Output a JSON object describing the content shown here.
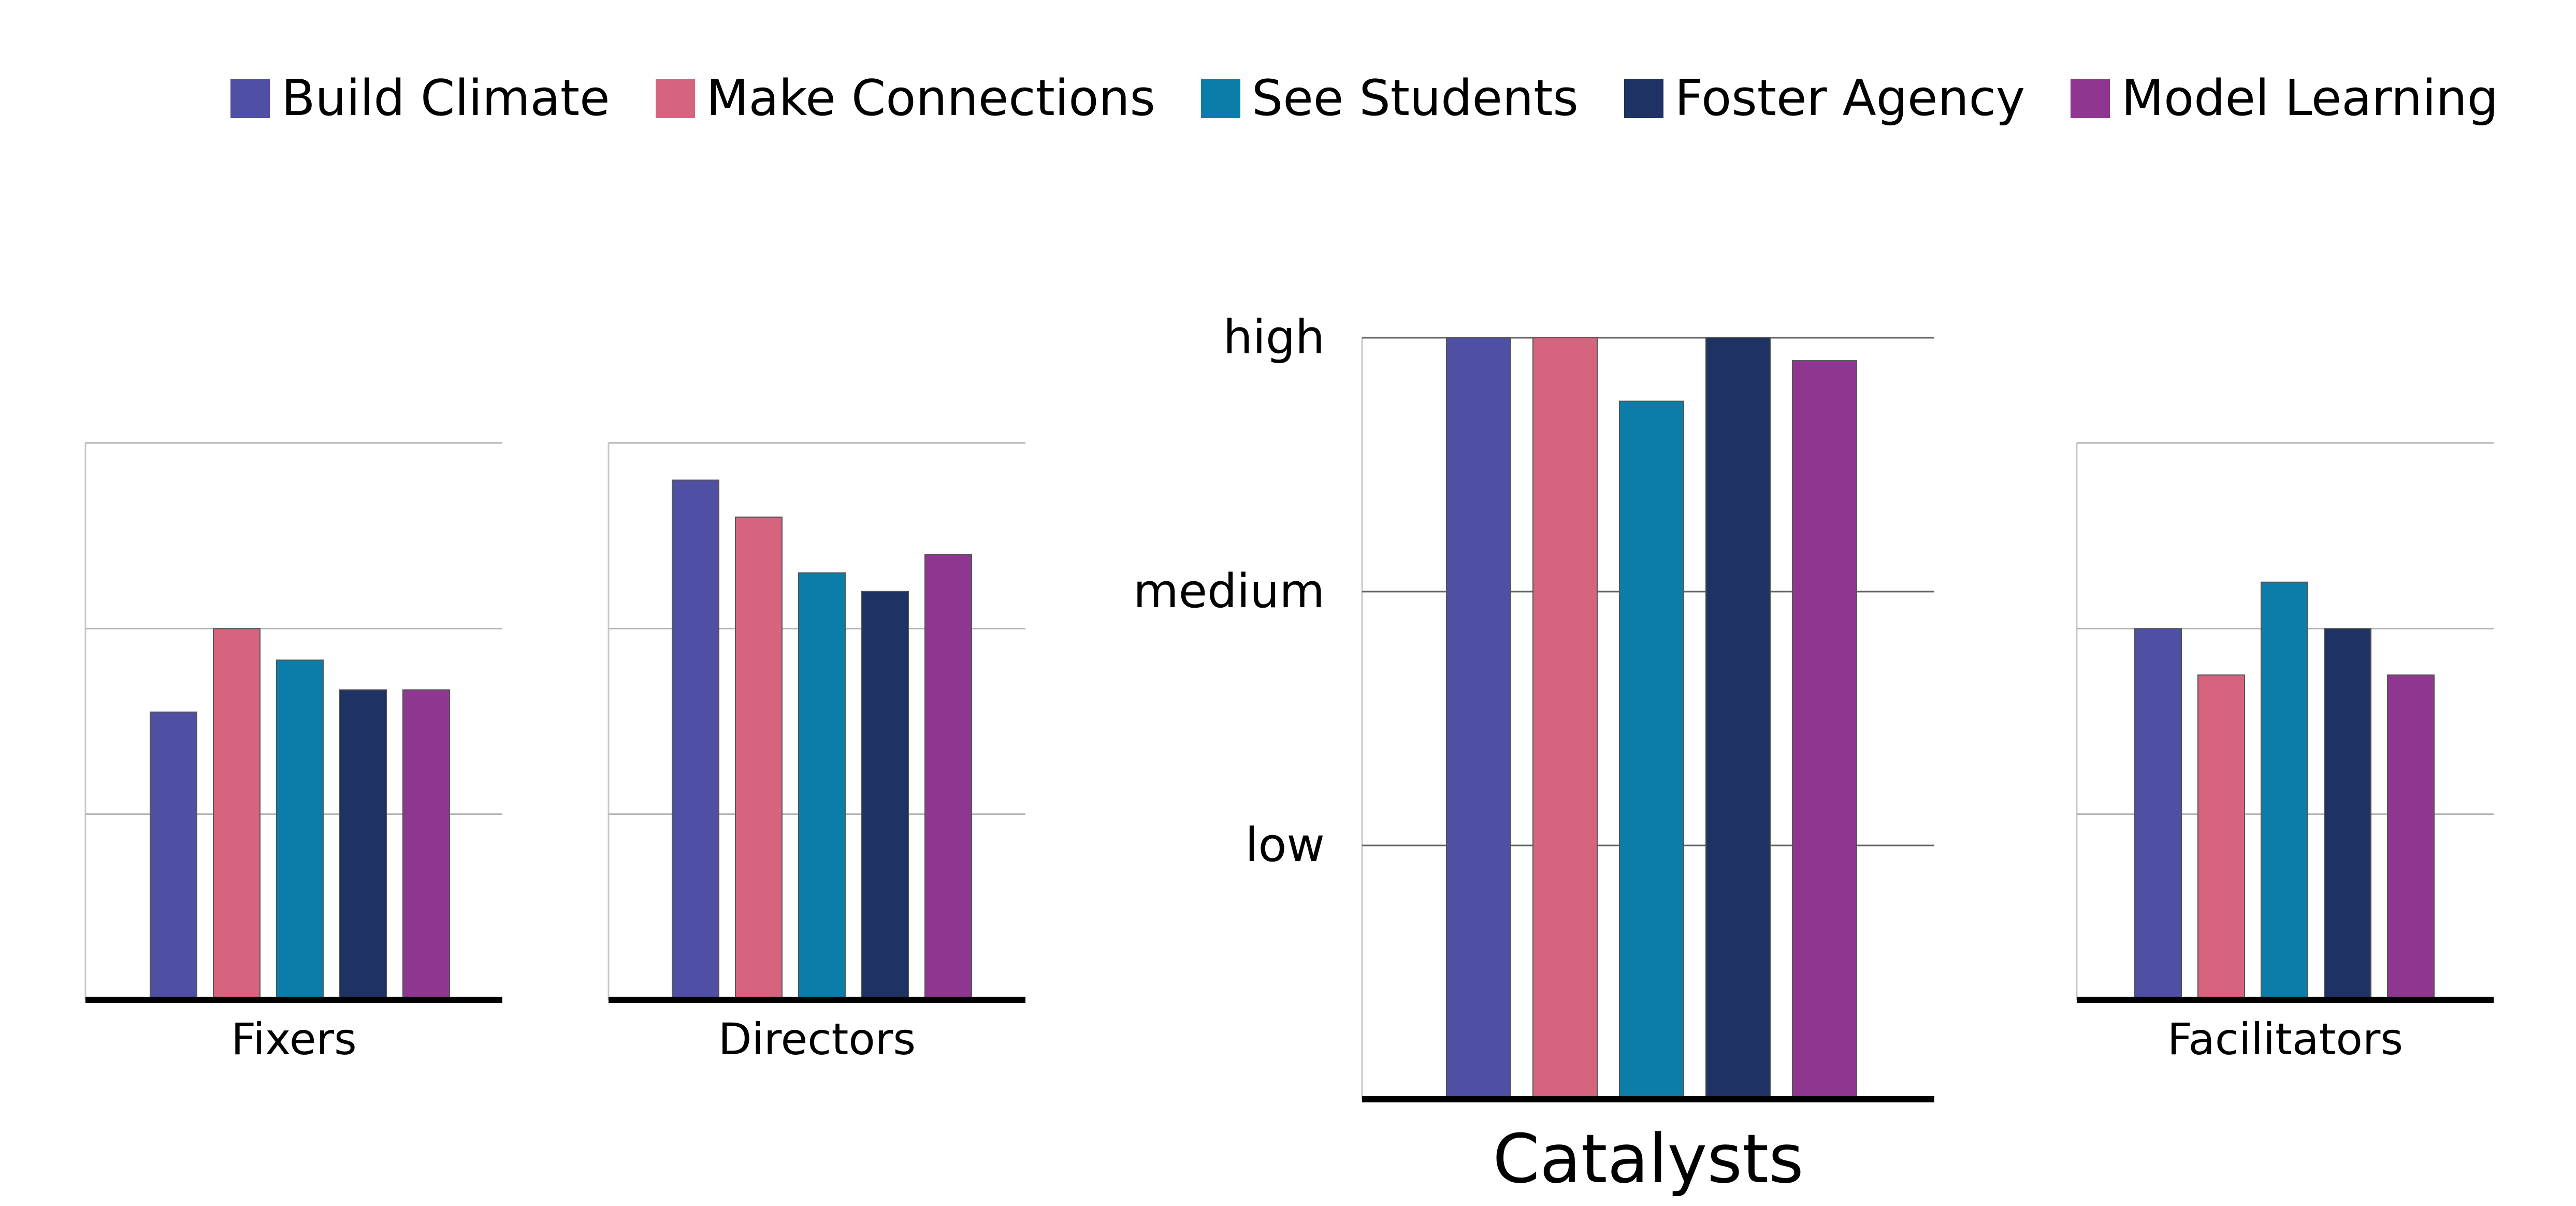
{
  "chart_data": {
    "type": "bar",
    "categories": [
      "Build Climate",
      "Make Connections",
      "See Students",
      "Foster Agency",
      "Model Learning"
    ],
    "colors": [
      "#4f4fa3",
      "#d6647e",
      "#0a7ea8",
      "#1e3263",
      "#8f3690"
    ],
    "y_levels": [
      "low",
      "medium",
      "high"
    ],
    "ylim": [
      0,
      3
    ],
    "grid": true,
    "legend_position": "top-right",
    "panels": [
      {
        "title": "Fixers",
        "values": [
          1.55,
          2.0,
          1.83,
          1.67,
          1.67
        ]
      },
      {
        "title": "Directors",
        "values": [
          2.8,
          2.6,
          2.3,
          2.2,
          2.4
        ]
      },
      {
        "title": "Catalysts",
        "values": [
          3.0,
          3.0,
          2.75,
          3.0,
          2.91
        ]
      },
      {
        "title": "Facilitators",
        "values": [
          2.0,
          1.75,
          2.25,
          2.0,
          1.75
        ]
      }
    ]
  }
}
